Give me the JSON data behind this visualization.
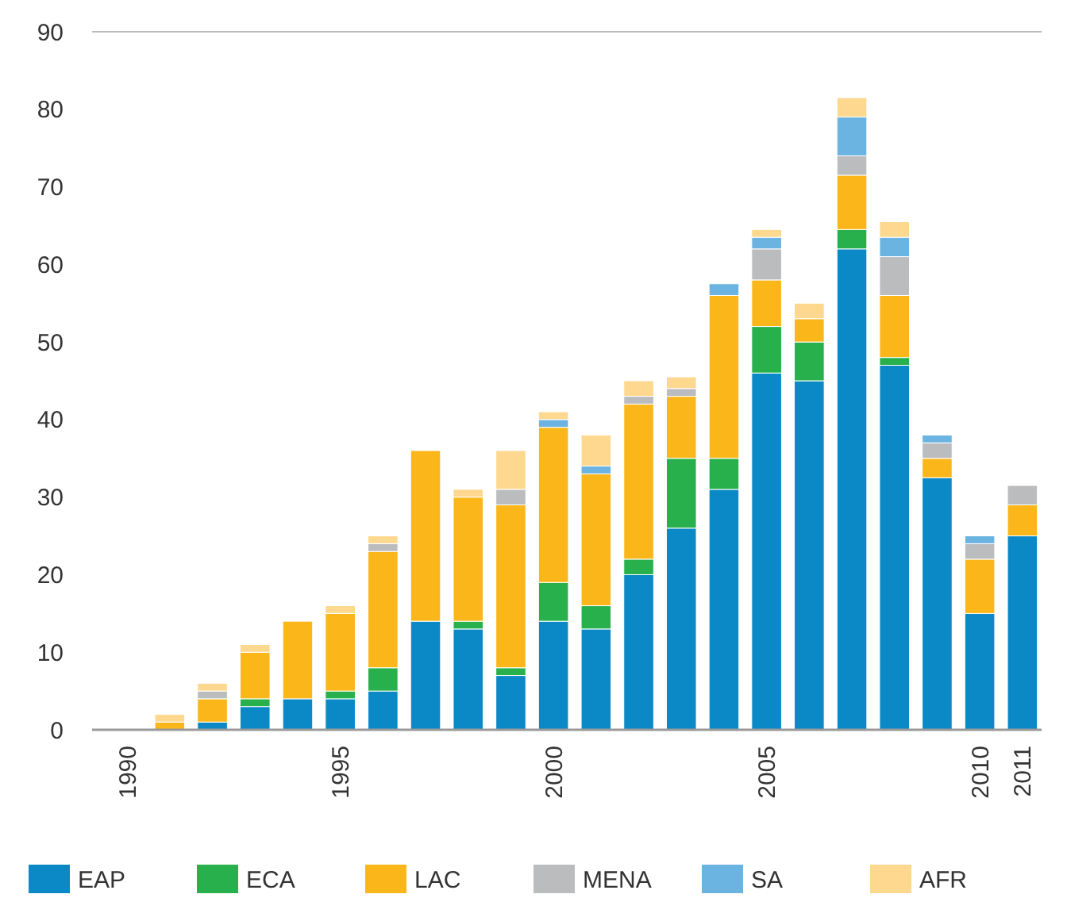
{
  "chart_data": {
    "type": "bar",
    "stacked": true,
    "categories": [
      "1990",
      null,
      null,
      null,
      null,
      "1995",
      null,
      null,
      null,
      null,
      "2000",
      null,
      null,
      null,
      null,
      "2005",
      null,
      null,
      null,
      null,
      "2010",
      "2011"
    ],
    "series": [
      {
        "name": "EAP",
        "color": "#0a89c6",
        "values": [
          0,
          0,
          1,
          3,
          4,
          4,
          5,
          14,
          13,
          7,
          14,
          13,
          20,
          26,
          31,
          46,
          45,
          62,
          47,
          32.5,
          15,
          25
        ]
      },
      {
        "name": "ECA",
        "color": "#27b04b",
        "values": [
          0,
          0,
          0,
          1,
          0,
          1,
          3,
          0,
          1,
          1,
          5,
          3,
          2,
          9,
          4,
          6,
          5,
          2.5,
          1,
          0,
          0,
          0
        ]
      },
      {
        "name": "LAC",
        "color": "#fbb61a",
        "values": [
          0,
          1,
          3,
          6,
          10,
          10,
          15,
          22,
          16,
          21,
          20,
          17,
          20,
          8,
          21,
          6,
          3,
          7,
          8,
          2.5,
          7,
          4
        ]
      },
      {
        "name": "MENA",
        "color": "#bbbcbe",
        "values": [
          0,
          0,
          1,
          0,
          0,
          0,
          1,
          0,
          0,
          2,
          0,
          0,
          1,
          1,
          0,
          4,
          0,
          2.5,
          5,
          2,
          2,
          2.5
        ]
      },
      {
        "name": "SA",
        "color": "#6bb3e0",
        "values": [
          0,
          0,
          0,
          0,
          0,
          0,
          0,
          0,
          0,
          0,
          1,
          1,
          0,
          0,
          1.5,
          1.5,
          0,
          5,
          2.5,
          1,
          1,
          0
        ]
      },
      {
        "name": "AFR",
        "color": "#fed88e",
        "values": [
          0,
          1,
          1,
          1,
          0,
          1,
          1,
          0,
          1,
          5,
          1,
          4,
          2,
          1.5,
          0,
          1,
          2,
          2.5,
          2,
          0,
          0,
          0
        ]
      }
    ],
    "ylim": [
      0,
      90
    ],
    "yticks": [
      0,
      10,
      20,
      30,
      40,
      50,
      60,
      70,
      80,
      90
    ],
    "legend": "bottom"
  }
}
